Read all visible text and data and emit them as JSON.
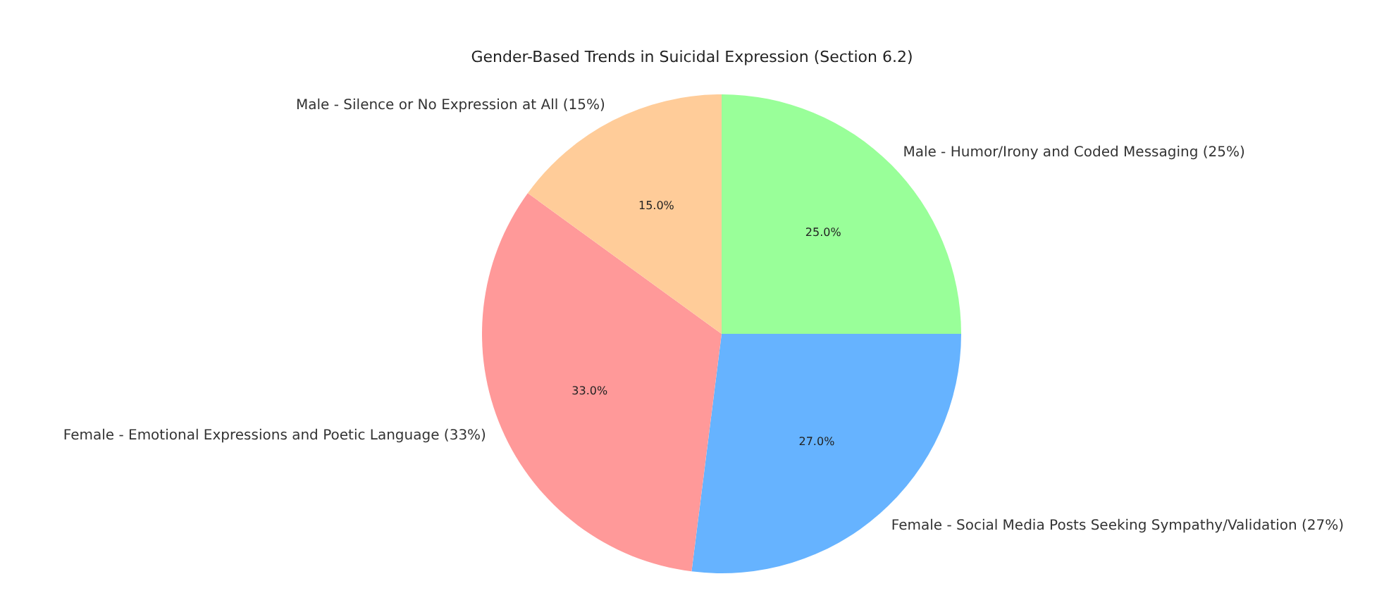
{
  "chart_data": {
    "type": "pie",
    "title": "Gender-Based Trends in Suicidal Expression (Section 6.2)",
    "categories": [
      "Male - Humor/Irony and Coded Messaging (25%)",
      "Female - Social Media Posts Seeking Sympathy/Validation (27%)",
      "Female - Emotional Expressions and Poetic Language (33%)",
      "Male - Silence or No Expression at All (15%)"
    ],
    "values": [
      25,
      27,
      33,
      15
    ],
    "colors": [
      "#99ff99",
      "#66b3ff",
      "#ff9999",
      "#ffcc99"
    ],
    "value_labels": [
      "25.0%",
      "27.0%",
      "33.0%",
      "15.0%"
    ],
    "legend": false
  }
}
